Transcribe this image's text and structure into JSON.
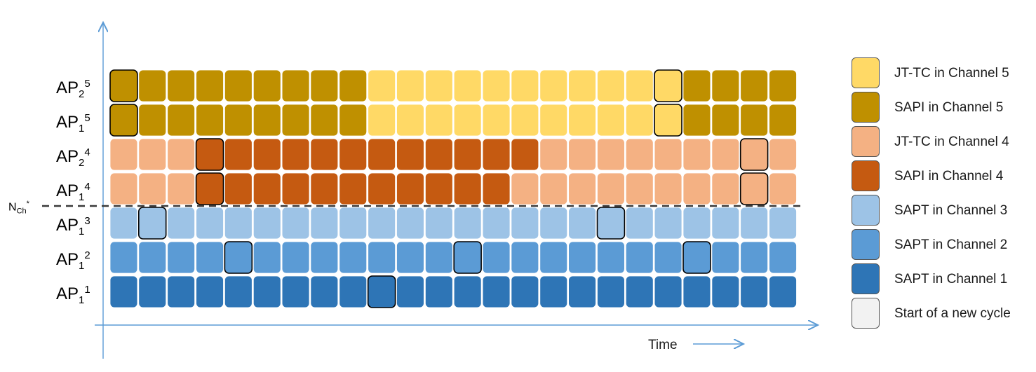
{
  "rows": [
    {
      "base": "AP",
      "sub": "2",
      "sup": "5",
      "colors": "sssssssssyyyyyyyyyyyssssss",
      "cycles": [
        0,
        19
      ]
    },
    {
      "base": "AP",
      "sub": "1",
      "sup": "5",
      "colors": "sssssssssyyyyyyyyyyyssssss",
      "cycles": [
        0,
        19
      ]
    },
    {
      "base": "AP",
      "sub": "2",
      "sup": "4",
      "colors": "pppffffffffffffpppppppppppffs",
      "cycles": [
        3,
        22
      ]
    },
    {
      "base": "AP",
      "sub": "1",
      "sup": "4",
      "colors": "pppfffffffffffpppppppppppppff",
      "cycles": [
        3,
        22
      ]
    },
    {
      "base": "AP",
      "sub": "1",
      "sup": "3",
      "colors": "lllllllllllllllllllllllll",
      "cycles": [
        1,
        17
      ]
    },
    {
      "base": "AP",
      "sub": "1",
      "sup": "2",
      "colors": "mmmmmmmmmmmmmmmmmmmmmmmmm",
      "cycles": [
        4,
        12,
        20
      ]
    },
    {
      "base": "AP",
      "sub": "1",
      "sup": "1",
      "colors": "ddddddddddddddddddddddddd",
      "cycles": [
        9
      ]
    }
  ],
  "threshold_label": {
    "base": "N",
    "sub": "Ch",
    "sup": "*"
  },
  "x_axis_label": "Time",
  "legend": [
    {
      "key": "y",
      "label": "JT-TC in Channel 5",
      "color": "#ffd966"
    },
    {
      "key": "s",
      "label": "SAPI in Channel 5",
      "color": "#bf9000"
    },
    {
      "key": "p",
      "label": "JT-TC in Channel 4",
      "color": "#f4b183"
    },
    {
      "key": "f",
      "label": "SAPI in Channel 4",
      "color": "#c55a11"
    },
    {
      "key": "l",
      "label": "SAPT in Channel 3",
      "color": "#9dc3e6"
    },
    {
      "key": "m",
      "label": "SAPT in Channel 2",
      "color": "#5b9bd5"
    },
    {
      "key": "d",
      "label": "SAPT in Channel 1",
      "color": "#2e75b6"
    },
    {
      "key": "c",
      "label": "Start of a new cycle",
      "color": "#f2f2f2"
    }
  ]
}
